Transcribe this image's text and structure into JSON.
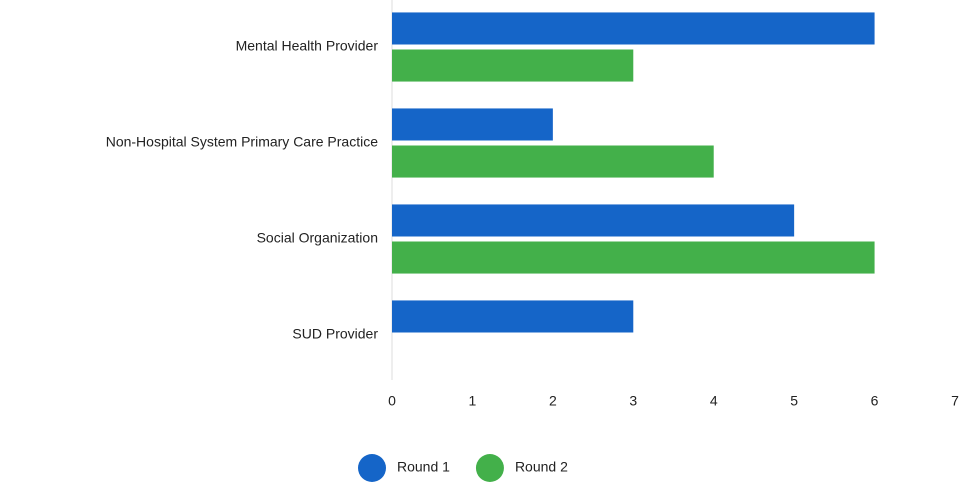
{
  "chart_data": {
    "type": "hbar",
    "categories": [
      "Mental Health Provider",
      "Non-Hospital System Primary Care Practice",
      "Social Organization",
      "SUD Provider"
    ],
    "series": [
      {
        "name": "Round 1",
        "color": "#1565c8",
        "values": [
          6,
          2,
          5,
          3
        ]
      },
      {
        "name": "Round 2",
        "color": "#43b04a",
        "values": [
          3,
          4,
          6,
          null
        ]
      }
    ],
    "xlim": [
      0,
      7
    ],
    "xticks": [
      0,
      1,
      2,
      3,
      4,
      5,
      6,
      7
    ],
    "grid": false,
    "legend": "bottom"
  }
}
